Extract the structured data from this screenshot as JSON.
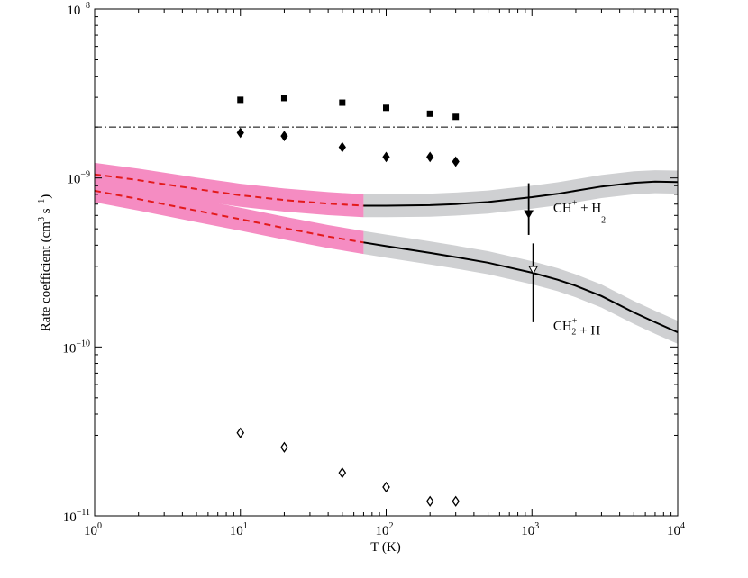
{
  "chart_data": {
    "type": "line",
    "title": "",
    "xlabel": "T (K)",
    "ylabel_parts": [
      "Rate coefficient (cm",
      "3",
      " s",
      "−1",
      ")"
    ],
    "xscale": "log",
    "yscale": "log",
    "xlim": [
      1,
      10000
    ],
    "ylim": [
      1e-11,
      1e-08
    ],
    "x_ticks": [
      {
        "base": "10",
        "exp": "0",
        "value": 1
      },
      {
        "base": "10",
        "exp": "1",
        "value": 10
      },
      {
        "base": "10",
        "exp": "2",
        "value": 100
      },
      {
        "base": "10",
        "exp": "3",
        "value": 1000
      },
      {
        "base": "10",
        "exp": "4",
        "value": 10000
      }
    ],
    "y_ticks": [
      {
        "base": "10",
        "exp": "−11",
        "value": 1e-11
      },
      {
        "base": "10",
        "exp": "−10",
        "value": 1e-10
      },
      {
        "base": "10",
        "exp": "−9",
        "value": 1e-09
      },
      {
        "base": "10",
        "exp": "−8",
        "value": 1e-08
      }
    ],
    "reference_line": {
      "name": "dash-dot reference",
      "value": 2e-09
    },
    "series": [
      {
        "name": "CH+ + H2",
        "label_parts": [
          [
            "CH",
            "base"
          ],
          [
            "+",
            "sup"
          ],
          [
            " + H",
            "base"
          ],
          [
            "2",
            "sub"
          ]
        ],
        "label_at": {
          "T": 1400,
          "k": 6.3e-10
        },
        "extrapolated": {
          "T": [
            1,
            2,
            5,
            10,
            20,
            40,
            70
          ],
          "k": [
            1.05e-09,
            9.7e-10,
            8.6e-10,
            7.9e-10,
            7.4e-10,
            7.05e-10,
            6.85e-10
          ]
        },
        "computed": {
          "T": [
            70,
            100,
            200,
            300,
            500,
            700,
            1000,
            1500,
            2000,
            3000,
            5000,
            7000,
            10000
          ],
          "k": [
            6.85e-10,
            6.85e-10,
            6.9e-10,
            7e-10,
            7.2e-10,
            7.45e-10,
            7.7e-10,
            8.05e-10,
            8.4e-10,
            8.9e-10,
            9.35e-10,
            9.5e-10,
            9.45e-10
          ]
        },
        "band_factor": 1.17
      },
      {
        "name": "CH2+ + H",
        "label_parts": [
          [
            "CH",
            "base"
          ],
          [
            "2",
            "subsup"
          ],
          [
            " + H",
            "base"
          ]
        ],
        "label_at": {
          "T": 1400,
          "k": 1.26e-10
        },
        "extrapolated": {
          "T": [
            1,
            2,
            5,
            10,
            20,
            40,
            70
          ],
          "k": [
            8.4e-10,
            7.5e-10,
            6.4e-10,
            5.7e-10,
            5.05e-10,
            4.5e-10,
            4.15e-10
          ]
        },
        "computed": {
          "T": [
            70,
            100,
            200,
            300,
            500,
            700,
            1000,
            1500,
            2000,
            3000,
            5000,
            7000,
            10000
          ],
          "k": [
            4.15e-10,
            3.95e-10,
            3.6e-10,
            3.4e-10,
            3.15e-10,
            2.95e-10,
            2.75e-10,
            2.5e-10,
            2.3e-10,
            2e-10,
            1.6e-10,
            1.4e-10,
            1.22e-10
          ]
        },
        "band_factor": 1.17
      }
    ],
    "scatter_series": [
      {
        "name": "filled squares",
        "marker": "square-filled",
        "T": [
          10,
          20,
          50,
          100,
          200,
          300
        ],
        "k": [
          2.9e-09,
          2.97e-09,
          2.79e-09,
          2.6e-09,
          2.4e-09,
          2.3e-09
        ]
      },
      {
        "name": "filled diamonds",
        "marker": "diamond-filled",
        "T": [
          10,
          20,
          50,
          100,
          200,
          300
        ],
        "k": [
          1.85e-09,
          1.77e-09,
          1.52e-09,
          1.33e-09,
          1.33e-09,
          1.25e-09
        ]
      },
      {
        "name": "open diamonds",
        "marker": "diamond-open",
        "T": [
          10,
          20,
          50,
          100,
          200,
          300
        ],
        "k": [
          3.1e-11,
          2.55e-11,
          1.8e-11,
          1.48e-11,
          1.22e-11,
          1.22e-11
        ]
      }
    ],
    "experimental_points": [
      {
        "name": "CH+ + H2 measurement",
        "marker": "triangle-down-filled",
        "T": 950,
        "k": 6.1e-10,
        "k_low": 4.6e-10,
        "k_high": 9.3e-10
      },
      {
        "name": "CH2+ + H measurement",
        "marker": "triangle-down-open",
        "T": 1020,
        "k": 2.85e-10,
        "k_low": 1.4e-10,
        "k_high": 4.1e-10
      }
    ],
    "colors": {
      "extrapolated_line": "#e31a1c",
      "extrapolated_band": "#f58cc2",
      "computed_line": "#000000",
      "computed_band": "#cfd0d2"
    }
  }
}
